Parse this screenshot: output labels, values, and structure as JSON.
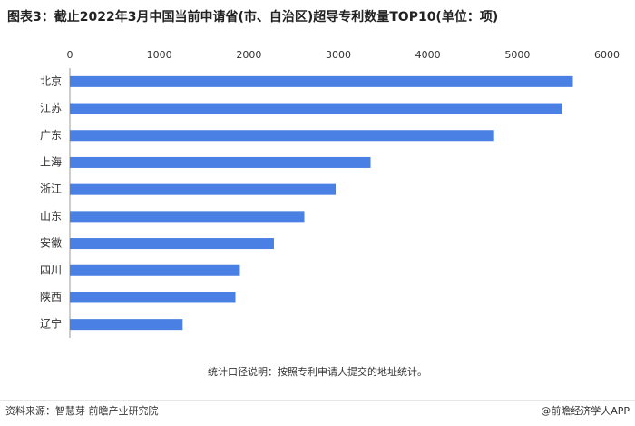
{
  "chart_data": {
    "type": "bar",
    "orientation": "horizontal",
    "title": "图表3：截止2022年3月中国当前申请省(市、自治区)超导专利数量TOP10(单位：项)",
    "categories": [
      "北京",
      "江苏",
      "广东",
      "上海",
      "浙江",
      "山东",
      "安徽",
      "四川",
      "陕西",
      "辽宁"
    ],
    "values": [
      5620,
      5500,
      4740,
      3360,
      2970,
      2620,
      2280,
      1900,
      1850,
      1260
    ],
    "color": "#4a7fe3",
    "xlim": [
      0,
      6000
    ],
    "xticks": [
      0,
      1000,
      2000,
      3000,
      4000,
      5000,
      6000
    ],
    "grid": false,
    "note": "统计口径说明：按照专利申请人提交的地址统计。",
    "source": "资料来源：智慧芽 前瞻产业研究院",
    "brand": "@前瞻经济学人APP"
  }
}
